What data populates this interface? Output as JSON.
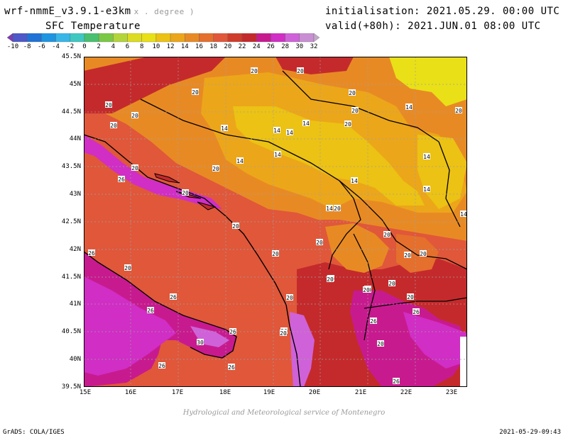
{
  "header": {
    "model": "wrf-nmmE_v3.9.1-e3km",
    "model_sub": "x . degree )",
    "field": "SFC Temperature",
    "init": "initialisation: 2021.05.29. 00:00 UTC",
    "valid": "valid(+80h): 2021.JUN.01 08:00 UTC"
  },
  "colorbar": {
    "ticks": [
      "-10",
      "-8",
      "-6",
      "-4",
      "-2",
      "0",
      "2",
      "4",
      "6",
      "8",
      "10",
      "12",
      "14",
      "16",
      "18",
      "20",
      "22",
      "24",
      "26",
      "28",
      "30",
      "32"
    ],
    "colors": [
      "#7e3db3",
      "#4e58c8",
      "#1f72d6",
      "#1e95e0",
      "#38b6e8",
      "#3ec8c0",
      "#48c070",
      "#7bc845",
      "#b3d43a",
      "#dcdc22",
      "#e9e017",
      "#ecc214",
      "#eca61a",
      "#e88a24",
      "#e56f2c",
      "#e0573a",
      "#d03c2a",
      "#c42a2c",
      "#c81a8f",
      "#d02ec5",
      "#cf62d8",
      "#c98fd3",
      "#c2a8c9"
    ]
  },
  "axes": {
    "lat_labels": [
      "45.5N",
      "45N",
      "44.5N",
      "44N",
      "43.5N",
      "43N",
      "42.5N",
      "42N",
      "41.5N",
      "41N",
      "40.5N",
      "40N",
      "39.5N"
    ],
    "lon_labels": [
      "15E",
      "16E",
      "17E",
      "18E",
      "19E",
      "20E",
      "21E",
      "22E",
      "23E"
    ]
  },
  "contour_labels": [
    "20",
    "20",
    "20",
    "20",
    "20",
    "20",
    "20",
    "20",
    "20",
    "20",
    "20",
    "20",
    "20",
    "20",
    "20",
    "20",
    "20",
    "20",
    "20",
    "20",
    "20",
    "20",
    "20",
    "20",
    "20",
    "20",
    "20",
    "20",
    "20",
    "20",
    "20",
    "20",
    "14",
    "14",
    "14",
    "14",
    "14",
    "14",
    "14",
    "14",
    "14",
    "14",
    "14",
    "14",
    "26",
    "26",
    "26",
    "26",
    "26",
    "26",
    "26",
    "26",
    "26",
    "26",
    "30"
  ],
  "footer": {
    "credit": "Hydrological and Meteorological service of Montenegro",
    "grads": "GrADS: COLA/IGES",
    "stamp": "2021-05-29-09:43"
  }
}
